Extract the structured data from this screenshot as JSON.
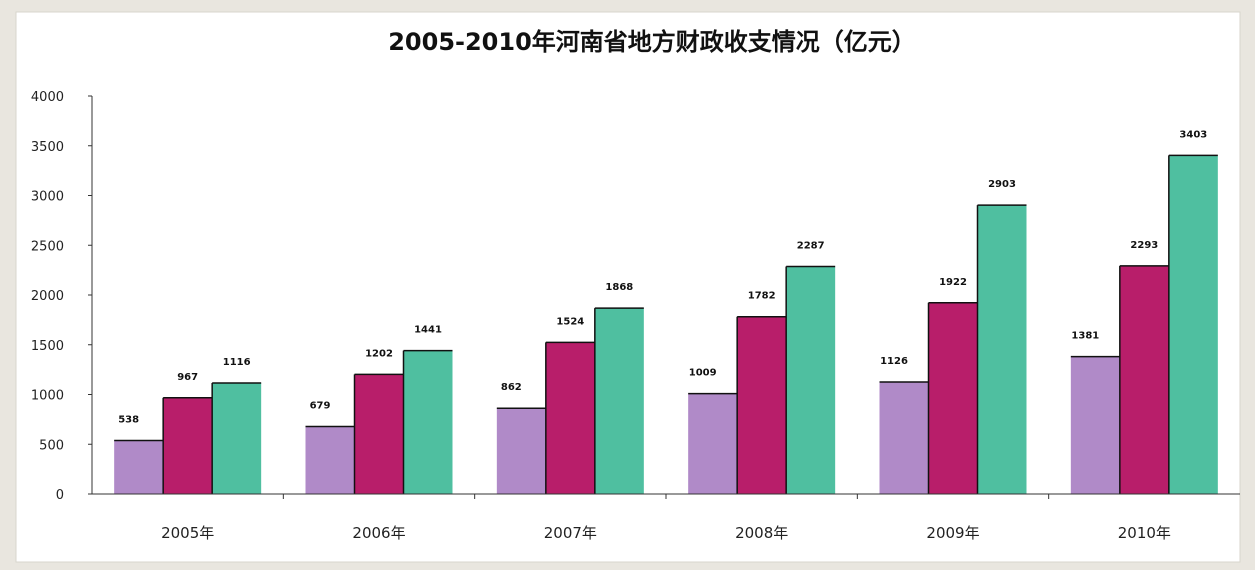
{
  "chart_data": {
    "type": "bar",
    "title": "2005-2010年河南省地方财政收支情况（亿元）",
    "categories": [
      "2005年",
      "2006年",
      "2007年",
      "2008年",
      "2009年",
      "2010年"
    ],
    "series": [
      {
        "values": [
          538,
          679,
          862,
          1009,
          1126,
          1381
        ]
      },
      {
        "values": [
          967,
          1202,
          1524,
          1782,
          1922,
          2293
        ]
      },
      {
        "values": [
          1116,
          1441,
          1868,
          2287,
          2903,
          3403
        ]
      }
    ],
    "ylim": [
      0,
      4000
    ],
    "yticks": [
      "0",
      "500",
      "1000",
      "1500",
      "2000",
      "2500",
      "3000",
      "3500",
      "4000"
    ],
    "grid": false,
    "colors": [
      "#b08ac8",
      "#b81e6a",
      "#4fbfa0"
    ]
  }
}
